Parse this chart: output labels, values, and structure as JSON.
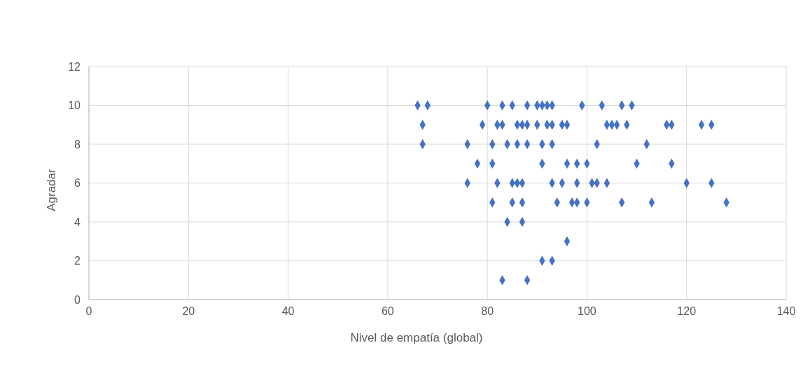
{
  "chart_data": {
    "type": "scatter",
    "xlabel": "Nivel de empatía (global)",
    "ylabel": "Agradar",
    "x": [
      66,
      68,
      80,
      83,
      85,
      88,
      90,
      91,
      92,
      93,
      99,
      103,
      107,
      109,
      67,
      79,
      82,
      83,
      86,
      87,
      88,
      90,
      92,
      93,
      95,
      96,
      104,
      105,
      106,
      108,
      116,
      117,
      123,
      125,
      67,
      76,
      81,
      84,
      86,
      88,
      91,
      93,
      102,
      112,
      78,
      81,
      91,
      96,
      98,
      100,
      110,
      117,
      76,
      82,
      85,
      86,
      87,
      93,
      95,
      98,
      101,
      102,
      104,
      120,
      125,
      81,
      85,
      87,
      94,
      97,
      98,
      100,
      107,
      113,
      128,
      84,
      87,
      96,
      91,
      93,
      83,
      88
    ],
    "values": [
      10,
      10,
      10,
      10,
      10,
      10,
      10,
      10,
      10,
      10,
      10,
      10,
      10,
      10,
      9,
      9,
      9,
      9,
      9,
      9,
      9,
      9,
      9,
      9,
      9,
      9,
      9,
      9,
      9,
      9,
      9,
      9,
      9,
      9,
      8,
      8,
      8,
      8,
      8,
      8,
      8,
      8,
      8,
      8,
      7,
      7,
      7,
      7,
      7,
      7,
      7,
      7,
      6,
      6,
      6,
      6,
      6,
      6,
      6,
      6,
      6,
      6,
      6,
      6,
      6,
      5,
      5,
      5,
      5,
      5,
      5,
      5,
      5,
      5,
      5,
      4,
      4,
      3,
      2,
      2,
      1,
      1
    ],
    "color": "#4472c4",
    "marker": "diamond",
    "grid": true,
    "xlim": [
      0,
      140
    ],
    "xticks": [
      0,
      20,
      40,
      60,
      80,
      100,
      120,
      140
    ],
    "ylim": [
      0,
      12
    ],
    "yticks": [
      0,
      2,
      4,
      6,
      8,
      10,
      12
    ]
  }
}
